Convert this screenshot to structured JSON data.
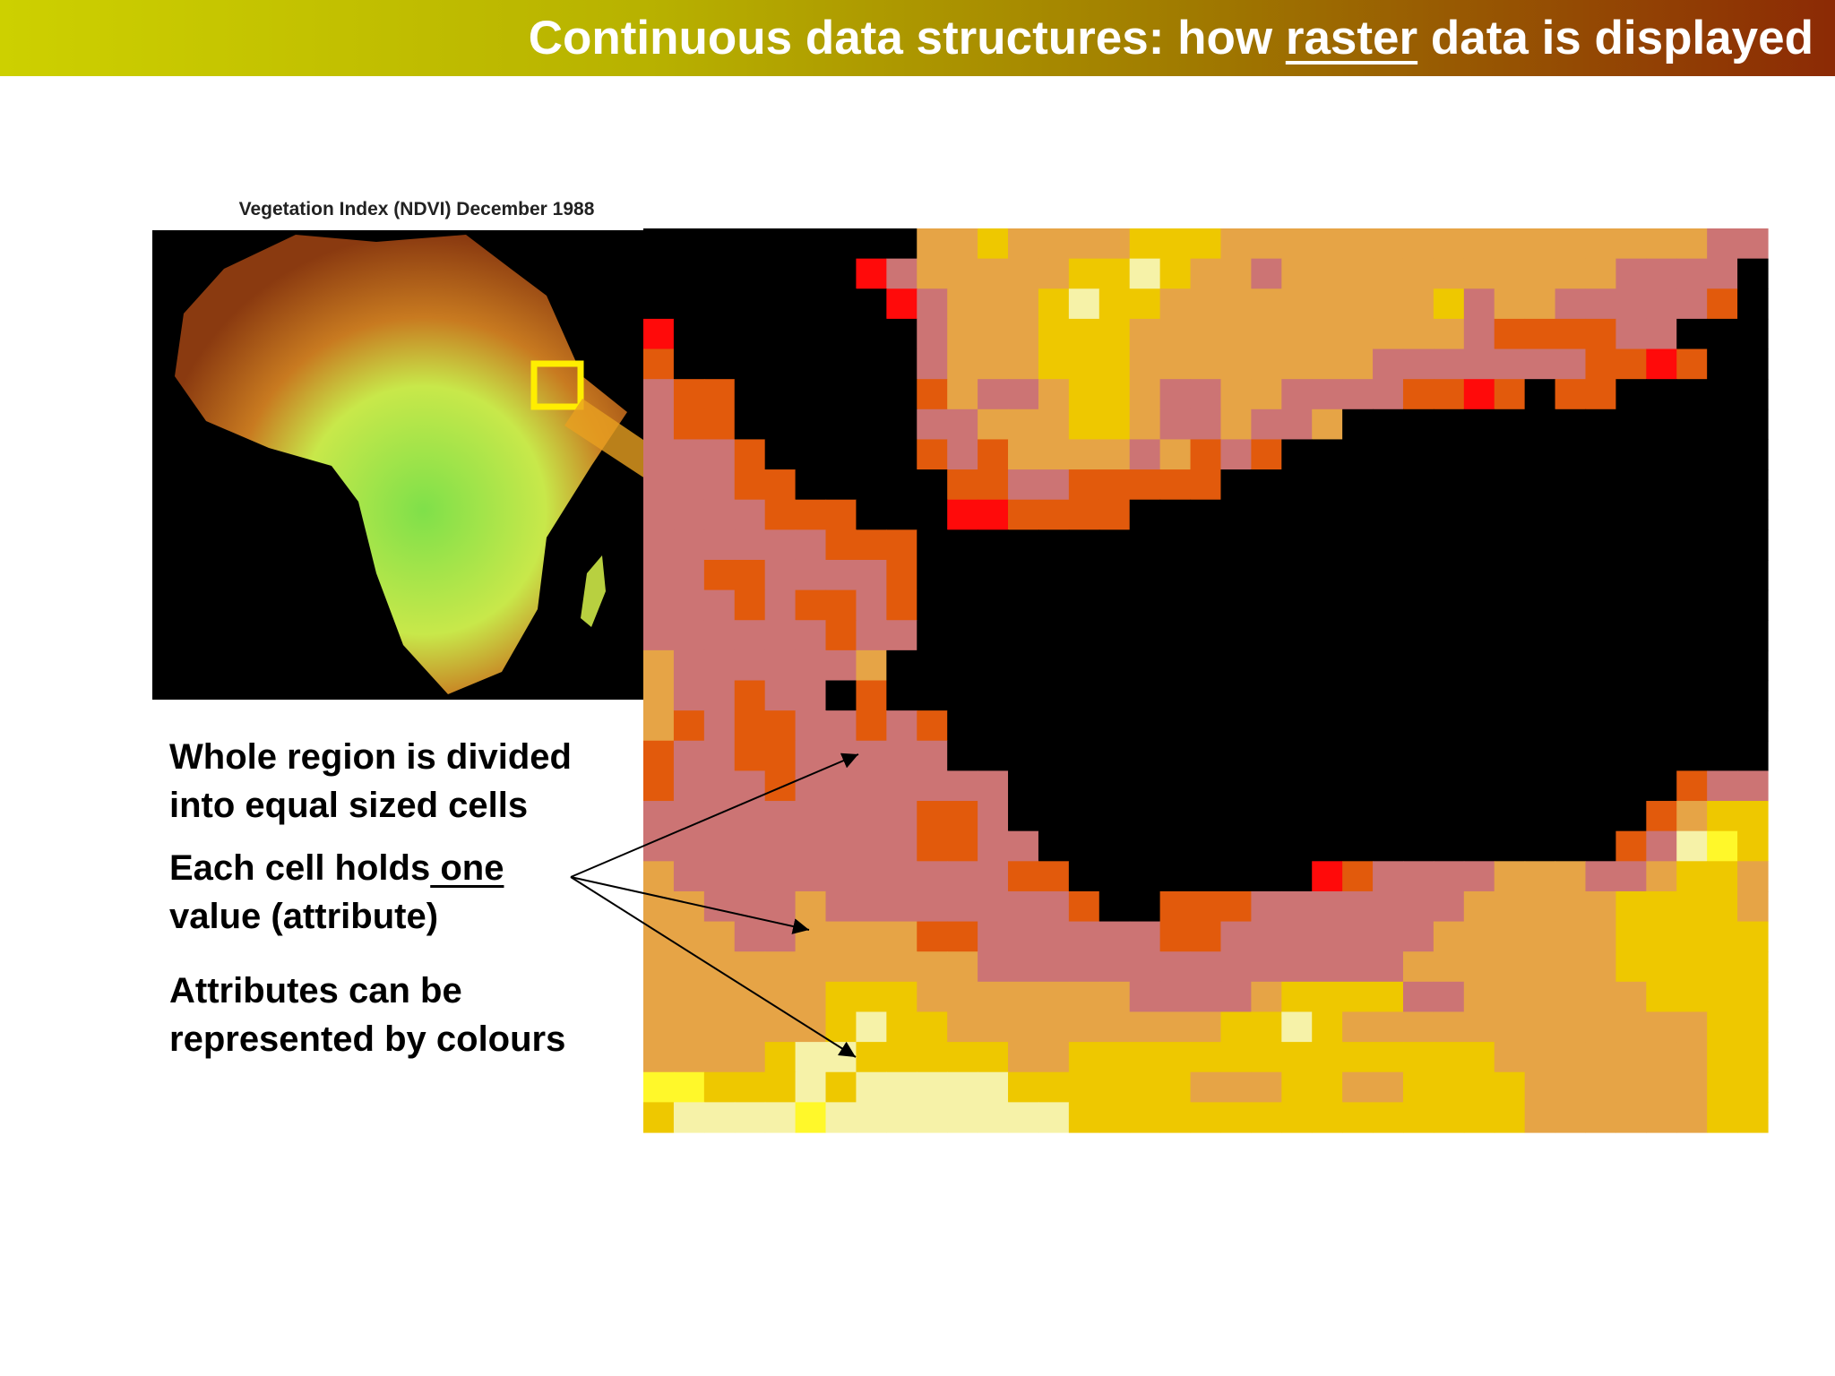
{
  "header": {
    "title_before": "Continuous data structures: how ",
    "title_emphasis": "raster",
    "title_after": " data is displayed"
  },
  "map": {
    "caption": "Vegetation Index (NDVI) December 1988"
  },
  "bullets": [
    {
      "lines": [
        "Whole region is divided",
        "into equal sized cells"
      ]
    },
    {
      "before": "Each cell holds",
      "emphasis": " one",
      "after": "value (attribute)"
    },
    {
      "lines": [
        "Attributes can be",
        "represented by colours"
      ]
    }
  ]
}
